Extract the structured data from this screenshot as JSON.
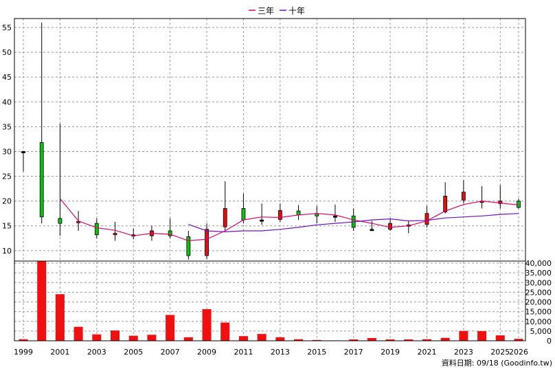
{
  "chart_data": {
    "type": "candlestick",
    "legend": [
      {
        "name": "三年",
        "color": "#e0006a"
      },
      {
        "name": "十年",
        "color": "#7010c0"
      }
    ],
    "legend_position": "top-center",
    "grid": true,
    "colors": {
      "up": "#e01010",
      "down": "#10c010",
      "volume": "#f01010",
      "frame": "#000000",
      "grid": "#999999"
    },
    "price_axis": {
      "ticks": [
        10,
        15,
        20,
        25,
        30,
        35,
        40,
        45,
        50,
        55
      ],
      "range": [
        7.9,
        56.8
      ]
    },
    "volume_axis": {
      "ticks": [
        "0",
        "5,000",
        "10,000",
        "15,000",
        "20,000",
        "25,000",
        "30,000",
        "35,000",
        "40,000"
      ],
      "range": [
        0,
        40000
      ]
    },
    "x_tick_labels": [
      "1999",
      "2001",
      "2003",
      "2005",
      "2007",
      "2009",
      "2011",
      "2013",
      "2015",
      "2017",
      "2019",
      "2021",
      "2023",
      "2025",
      "2026"
    ],
    "candles": [
      {
        "year": "1999",
        "open": 30,
        "close": 30,
        "high": 30,
        "low": 26
      },
      {
        "year": "2000",
        "open": 31.8,
        "close": 16.8,
        "high": 56,
        "low": 15.5
      },
      {
        "year": "2001",
        "open": 16.5,
        "close": 15.5,
        "high": 35.6,
        "low": 13
      },
      {
        "year": "2002",
        "open": 15.8,
        "close": 15.9,
        "high": 18,
        "low": 14
      },
      {
        "year": "2003",
        "open": 15.5,
        "close": 13.2,
        "high": 16.5,
        "low": 12.5
      },
      {
        "year": "2004",
        "open": 13.2,
        "close": 13.5,
        "high": 15.8,
        "low": 12
      },
      {
        "year": "2005",
        "open": 13,
        "close": 13.2,
        "high": 14.5,
        "low": 12.3
      },
      {
        "year": "2006",
        "open": 13,
        "close": 14,
        "high": 15,
        "low": 12
      },
      {
        "year": "2007",
        "open": 14,
        "close": 13,
        "high": 16.5,
        "low": 12.5
      },
      {
        "year": "2008",
        "open": 12.8,
        "close": 9,
        "high": 14,
        "low": 8.2
      },
      {
        "year": "2009",
        "open": 9,
        "close": 14.3,
        "high": 15.5,
        "low": 8.3
      },
      {
        "year": "2010",
        "open": 14.8,
        "close": 18.5,
        "high": 24,
        "low": 14
      },
      {
        "year": "2011",
        "open": 18.5,
        "close": 16.2,
        "high": 21.5,
        "low": 15.5
      },
      {
        "year": "2012",
        "open": 16.2,
        "close": 16.2,
        "high": 19.5,
        "low": 15.2
      },
      {
        "year": "2013",
        "open": 16.3,
        "close": 18.1,
        "high": 19.5,
        "low": 15.8
      },
      {
        "year": "2014",
        "open": 18,
        "close": 17.2,
        "high": 19.2,
        "low": 16.2
      },
      {
        "year": "2015",
        "open": 17.5,
        "close": 17,
        "high": 19,
        "low": 15.5
      },
      {
        "year": "2016",
        "open": 17,
        "close": 17,
        "high": 19.3,
        "low": 15.8
      },
      {
        "year": "2017",
        "open": 17,
        "close": 14.7,
        "high": 18.5,
        "low": 14
      },
      {
        "year": "2018",
        "open": 14.3,
        "close": 14.3,
        "high": 16,
        "low": 14
      },
      {
        "year": "2019",
        "open": 14.3,
        "close": 15.5,
        "high": 16.5,
        "low": 14
      },
      {
        "year": "2020",
        "open": 15,
        "close": 15.2,
        "high": 16,
        "low": 13.5
      },
      {
        "year": "2021",
        "open": 15.3,
        "close": 17.5,
        "high": 19,
        "low": 14.7
      },
      {
        "year": "2022",
        "open": 17.8,
        "close": 21,
        "high": 23.8,
        "low": 17.5
      },
      {
        "year": "2023",
        "open": 20.2,
        "close": 21.8,
        "high": 24.2,
        "low": 19.5
      },
      {
        "year": "2024",
        "open": 19.8,
        "close": 20,
        "high": 23,
        "low": 18.5
      },
      {
        "year": "2025",
        "open": 19.5,
        "close": 20,
        "high": 23.2,
        "low": 18.5
      },
      {
        "year": "2026",
        "open": 20,
        "close": 18.7,
        "high": 20.5,
        "low": 18.5
      }
    ],
    "ma3": [
      {
        "year": "2001",
        "value": 20.5
      },
      {
        "year": "2002",
        "value": 16
      },
      {
        "year": "2003",
        "value": 14.6
      },
      {
        "year": "2004",
        "value": 14.1
      },
      {
        "year": "2005",
        "value": 13
      },
      {
        "year": "2006",
        "value": 13.5
      },
      {
        "year": "2007",
        "value": 13.3
      },
      {
        "year": "2008",
        "value": 12
      },
      {
        "year": "2009",
        "value": 12.3
      },
      {
        "year": "2010",
        "value": 14
      },
      {
        "year": "2011",
        "value": 16.2
      },
      {
        "year": "2012",
        "value": 16.8
      },
      {
        "year": "2013",
        "value": 16.7
      },
      {
        "year": "2014",
        "value": 17.2
      },
      {
        "year": "2015",
        "value": 17.5
      },
      {
        "year": "2016",
        "value": 17.2
      },
      {
        "year": "2017",
        "value": 16.2
      },
      {
        "year": "2018",
        "value": 15.5
      },
      {
        "year": "2019",
        "value": 14.7
      },
      {
        "year": "2020",
        "value": 15
      },
      {
        "year": "2021",
        "value": 16
      },
      {
        "year": "2022",
        "value": 18
      },
      {
        "year": "2023",
        "value": 19.3
      },
      {
        "year": "2024",
        "value": 20
      },
      {
        "year": "2025",
        "value": 19.6
      },
      {
        "year": "2026",
        "value": 19.2
      }
    ],
    "ma10": [
      {
        "year": "2008",
        "value": 15.3
      },
      {
        "year": "2009",
        "value": 14
      },
      {
        "year": "2010",
        "value": 13.8
      },
      {
        "year": "2011",
        "value": 14
      },
      {
        "year": "2012",
        "value": 14
      },
      {
        "year": "2013",
        "value": 14.3
      },
      {
        "year": "2014",
        "value": 14.7
      },
      {
        "year": "2015",
        "value": 15.2
      },
      {
        "year": "2016",
        "value": 15.5
      },
      {
        "year": "2017",
        "value": 15.8
      },
      {
        "year": "2018",
        "value": 16.2
      },
      {
        "year": "2019",
        "value": 16.4
      },
      {
        "year": "2020",
        "value": 16
      },
      {
        "year": "2021",
        "value": 16.1
      },
      {
        "year": "2022",
        "value": 16.6
      },
      {
        "year": "2023",
        "value": 16.8
      },
      {
        "year": "2024",
        "value": 17
      },
      {
        "year": "2025",
        "value": 17.3
      },
      {
        "year": "2026",
        "value": 17.5
      }
    ],
    "volume": [
      {
        "year": "1999",
        "value": 800
      },
      {
        "year": "2000",
        "value": 41000
      },
      {
        "year": "2001",
        "value": 24000
      },
      {
        "year": "2002",
        "value": 7200
      },
      {
        "year": "2003",
        "value": 3300
      },
      {
        "year": "2004",
        "value": 5300
      },
      {
        "year": "2005",
        "value": 2600
      },
      {
        "year": "2006",
        "value": 3100
      },
      {
        "year": "2007",
        "value": 13300
      },
      {
        "year": "2008",
        "value": 1800
      },
      {
        "year": "2009",
        "value": 16300
      },
      {
        "year": "2010",
        "value": 9400
      },
      {
        "year": "2011",
        "value": 2400
      },
      {
        "year": "2012",
        "value": 3500
      },
      {
        "year": "2013",
        "value": 1800
      },
      {
        "year": "2014",
        "value": 800
      },
      {
        "year": "2015",
        "value": 400
      },
      {
        "year": "2016",
        "value": 200
      },
      {
        "year": "2017",
        "value": 700
      },
      {
        "year": "2018",
        "value": 1400
      },
      {
        "year": "2019",
        "value": 700
      },
      {
        "year": "2020",
        "value": 700
      },
      {
        "year": "2021",
        "value": 800
      },
      {
        "year": "2022",
        "value": 1500
      },
      {
        "year": "2023",
        "value": 5100
      },
      {
        "year": "2024",
        "value": 5000
      },
      {
        "year": "2025",
        "value": 2800
      },
      {
        "year": "2026",
        "value": 1000
      }
    ],
    "footer": "資料日期: 09/18 (Goodinfo.tw)"
  }
}
